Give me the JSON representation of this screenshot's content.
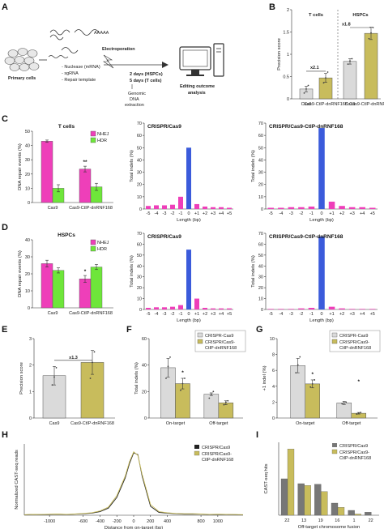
{
  "panel_labels": [
    "A",
    "B",
    "C",
    "D",
    "E",
    "F",
    "G",
    "H",
    "I"
  ],
  "workflow": {
    "primary_cells": "Primary cells",
    "inputs": [
      "- Nuclease (mRNA)",
      "- sgRNA",
      "- Repair template"
    ],
    "mrna_label": "AAAAA",
    "electroporation": "Electroporation",
    "time_lines": [
      "2 days (HSPCs)",
      "5 days (T cells)"
    ],
    "extraction_lines": [
      "Genomic",
      "DNA",
      "extraction"
    ],
    "analysis_lines": [
      "Editing outcome",
      "analysis"
    ]
  },
  "colors": {
    "pink": "#ee3fb9",
    "green": "#6ee63a",
    "grey": "#dadada",
    "olive": "#c8bc5c",
    "blue": "#3b5bdb",
    "dark": "#777777"
  },
  "chart_data": [
    {
      "id": "B",
      "type": "bar",
      "groups": [
        "T cells",
        "HSPCs"
      ],
      "categories": [
        "Cas9",
        "Cas9-CtIP-dnRNF168",
        "Cas9",
        "Cas9-CtIP-dnRNF168"
      ],
      "values": [
        0.22,
        0.47,
        0.84,
        1.47
      ],
      "errors": [
        0.06,
        0.1,
        0.06,
        0.14
      ],
      "points": [
        [
          0.13,
          0.22,
          0.3
        ],
        [
          0.36,
          0.47,
          0.6
        ],
        [
          0.78,
          0.85,
          0.9
        ],
        [
          1.35,
          1.48,
          1.6
        ]
      ],
      "ylabel": "Precision score",
      "ylim": [
        0,
        2.0
      ],
      "yticks": [
        0.0,
        0.5,
        1.0,
        1.5,
        2.0
      ],
      "annotations": [
        "x2.1",
        "x1.8"
      ]
    },
    {
      "id": "C_bar",
      "type": "bar",
      "title": "T cells",
      "categories": [
        "Cas9",
        "Cas9-CtIP-dnRNF168"
      ],
      "series": [
        {
          "name": "NHEJ",
          "values": [
            43,
            23.5
          ],
          "errors": [
            0.8,
            2
          ]
        },
        {
          "name": "HDR",
          "values": [
            10,
            11
          ],
          "errors": [
            2.5,
            2.5
          ]
        }
      ],
      "ylabel": "DNA repair events (%)",
      "ylim": [
        0,
        50
      ],
      "yticks": [
        0,
        10,
        20,
        30,
        40,
        50
      ],
      "annotation": "**"
    },
    {
      "id": "C_hist1",
      "type": "bar",
      "title": "CRISPR/Cas9",
      "categories": [
        "-5",
        "-4",
        "-3",
        "-2",
        "-1",
        "0",
        "+1",
        "+2",
        "+3",
        "+4",
        "+5"
      ],
      "values": [
        2.5,
        3,
        3,
        3.5,
        10,
        50,
        4,
        2,
        1.5,
        1.5,
        1
      ],
      "ylabel": "Total indels (%)",
      "xlabel": "Length (bp)",
      "ylim": [
        0,
        70
      ],
      "yticks": [
        0,
        10,
        20,
        30,
        40,
        50,
        60,
        70
      ]
    },
    {
      "id": "C_hist2",
      "type": "bar",
      "title": "CRISPR/Cas9-CtIP-dnRNF168",
      "categories": [
        "-5",
        "-4",
        "-3",
        "-2",
        "-1",
        "0",
        "+1",
        "+2",
        "+3",
        "+4",
        "+5"
      ],
      "values": [
        1,
        1,
        1.5,
        1.5,
        2,
        66,
        6,
        2.5,
        1.5,
        1.5,
        1
      ],
      "ylabel": "Total indels (%)",
      "xlabel": "Length (bp)",
      "ylim": [
        0,
        70
      ],
      "yticks": [
        0,
        10,
        20,
        30,
        40,
        50,
        60,
        70
      ]
    },
    {
      "id": "D_bar",
      "type": "bar",
      "title": "HSPCs",
      "categories": [
        "Cas9",
        "Cas9-CtIP-dnRNF168"
      ],
      "series": [
        {
          "name": "NHEJ",
          "values": [
            26,
            17
          ],
          "errors": [
            2,
            2
          ]
        },
        {
          "name": "HDR",
          "values": [
            22,
            24
          ],
          "errors": [
            1.5,
            1.5
          ]
        }
      ],
      "ylabel": "DNA repair events (%)",
      "ylim": [
        0,
        40
      ],
      "yticks": [
        0,
        10,
        20,
        30,
        40
      ],
      "annotation": "*"
    },
    {
      "id": "D_hist1",
      "type": "bar",
      "title": "CRISPR/Cas9",
      "categories": [
        "-5",
        "-4",
        "-3",
        "-2",
        "-1",
        "0",
        "+1",
        "+2",
        "+3",
        "+4",
        "+5"
      ],
      "values": [
        1.5,
        2,
        2,
        2.5,
        4,
        55,
        10,
        1.5,
        1,
        1,
        1
      ],
      "ylabel": "Total indels (%)",
      "xlabel": "Length (bp)",
      "ylim": [
        0,
        70
      ],
      "yticks": [
        0,
        10,
        20,
        30,
        40,
        50,
        60,
        70
      ]
    },
    {
      "id": "D_hist2",
      "type": "bar",
      "title": "CRISPR/Cas9-CtIP-dnRNF168",
      "categories": [
        "-5",
        "-4",
        "-3",
        "-2",
        "-1",
        "0",
        "+1",
        "+2",
        "+3",
        "+4",
        "+5"
      ],
      "values": [
        0.5,
        0.5,
        0.5,
        1,
        1.5,
        67,
        2.5,
        1,
        0.5,
        0.5,
        0.5
      ],
      "ylabel": "Total indels (%)",
      "xlabel": "Length (bp)",
      "ylim": [
        0,
        70
      ],
      "yticks": [
        0,
        10,
        20,
        30,
        40,
        50,
        60,
        70
      ]
    },
    {
      "id": "E",
      "type": "bar",
      "categories": [
        "Cas9",
        "Cas9-CtIP-dnRNF168"
      ],
      "values": [
        1.6,
        2.1
      ],
      "errors": [
        0.35,
        0.45
      ],
      "points": [
        [
          1.25,
          1.55,
          1.9
        ],
        [
          1.5,
          2.1,
          2.5
        ]
      ],
      "ylabel": "Precision score",
      "ylim": [
        0,
        3
      ],
      "yticks": [
        0,
        1,
        2,
        3
      ],
      "annotation": "x1.3"
    },
    {
      "id": "F",
      "type": "bar",
      "categories": [
        "On-target",
        "Off-target"
      ],
      "series": [
        {
          "name": "CRISPR-Cas9",
          "values": [
            38,
            18
          ],
          "errors": [
            7,
            1
          ]
        },
        {
          "name": "CRISPR/Cas9-CtIP-dnRNF168",
          "values": [
            26,
            11.5
          ],
          "errors": [
            4,
            1.5
          ]
        }
      ],
      "points": [
        [
          30,
          39,
          46
        ],
        [
          15,
          18,
          20
        ],
        [
          21,
          26,
          30
        ],
        [
          10,
          12,
          13
        ]
      ],
      "ylabel": "Total indels (%)",
      "ylim": [
        0,
        60
      ],
      "yticks": [
        0,
        20,
        40,
        60
      ],
      "legend": [
        "CRISPR-Cas9",
        "CRISPR/Cas9-",
        "CtIP-dnRNF168"
      ],
      "annotation": "*"
    },
    {
      "id": "G",
      "type": "bar",
      "categories": [
        "On-target",
        "Off-target"
      ],
      "series": [
        {
          "name": "CRISPR-Cas9",
          "values": [
            6.6,
            1.9
          ],
          "errors": [
            0.9,
            0.2
          ]
        },
        {
          "name": "CRISPR/Cas9-CtIP-dnRNF168",
          "values": [
            4.3,
            0.6
          ],
          "errors": [
            0.5,
            0.1
          ]
        }
      ],
      "points": [
        [
          5.7,
          6.7,
          7.7
        ],
        [
          1.8,
          1.9,
          2.0
        ],
        [
          3.9,
          4.3,
          4.8
        ],
        [
          0.5,
          0.6,
          0.7
        ]
      ],
      "ylabel": "+1 indel (%)",
      "ylim": [
        0,
        10
      ],
      "yticks": [
        0,
        2,
        4,
        6,
        8,
        10
      ],
      "legend": [
        "CRISPR-Cas9",
        "CRISPR/Cas9-",
        "CtIP-dnRNF168"
      ],
      "annotations": [
        "*",
        "*"
      ]
    },
    {
      "id": "H",
      "type": "line",
      "x": [
        -1300,
        -1200,
        -1100,
        -1000,
        -900,
        -800,
        -700,
        -600,
        -500,
        -400,
        -300,
        -200,
        -100,
        -50,
        0,
        50,
        100,
        200,
        300,
        400,
        500,
        600,
        700,
        800,
        900,
        1000,
        1100,
        1200,
        1300
      ],
      "series": [
        {
          "name": "CRISPR/Cas9",
          "values": [
            0.1,
            0.2,
            0.15,
            0.25,
            0.3,
            0.2,
            0.3,
            0.4,
            0.6,
            1.0,
            2,
            5,
            10.5,
            14.5,
            17.5,
            17,
            11,
            2.5,
            0.8,
            0.6,
            0.4,
            0.3,
            0.35,
            0.3,
            0.2,
            0.25,
            0.2,
            0.15,
            0.1
          ]
        },
        {
          "name": "CRISPR/Cas9-CtIP-dnRNF168",
          "values": [
            0.15,
            0.25,
            0.2,
            0.3,
            0.35,
            0.25,
            0.35,
            0.5,
            0.7,
            1.2,
            2.3,
            5.5,
            11,
            15,
            17.8,
            16.8,
            11.5,
            3,
            1,
            0.7,
            0.5,
            0.4,
            0.4,
            0.35,
            0.25,
            0.3,
            0.25,
            0.2,
            0.15
          ]
        }
      ],
      "xlabel": "Distance from on-target (bp)",
      "ylabel": "Normalized CAST-seq reads",
      "xticks": [
        -1000,
        -600,
        -400,
        -200,
        0,
        200,
        400,
        800,
        1000
      ],
      "legend": [
        "CRISPR/Cas9",
        "CRISPR/Cas9-",
        "CtIP-dnRNF168"
      ]
    },
    {
      "id": "I",
      "type": "bar",
      "categories": [
        "22",
        "13",
        "19",
        "16",
        "1",
        "22"
      ],
      "series": [
        {
          "name": "CRISPR/Cas9",
          "values": [
            600,
            520,
            510,
            200,
            80,
            50
          ]
        },
        {
          "name": "CRISPR/Cas9-CtIP-dnRNF168",
          "values": [
            1090,
            490,
            390,
            130,
            20,
            0
          ]
        }
      ],
      "xlabel": "Off-target chromosome fusion",
      "ylabel": "CAST-seq hits",
      "ylim": [
        0,
        1200
      ],
      "legend": [
        "CRISPR/Cas9",
        "CRISPR/Cas9-",
        "CtIP-dnRNF168"
      ]
    }
  ]
}
